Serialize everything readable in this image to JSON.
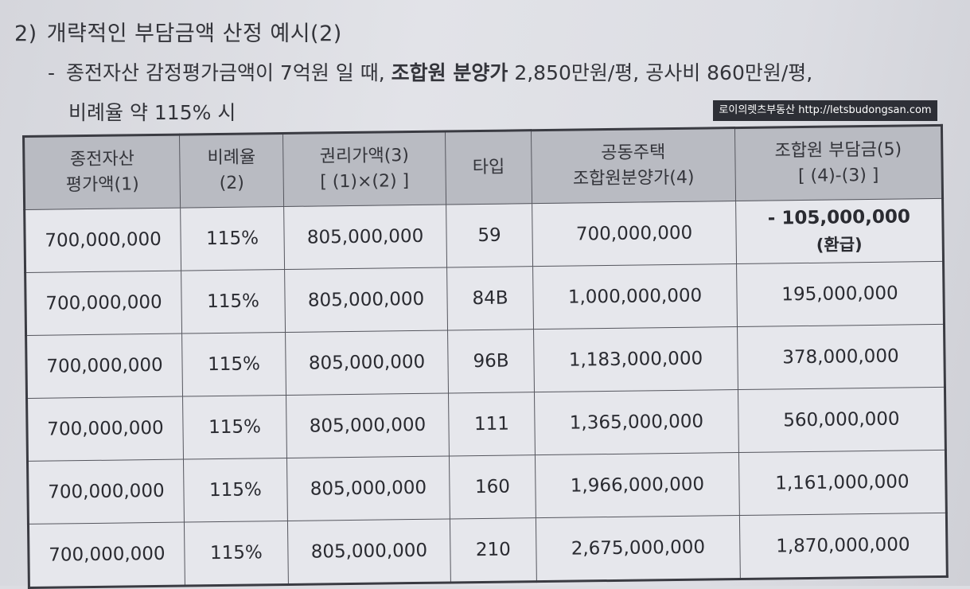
{
  "heading": {
    "number": "2)",
    "title": "개략적인 부담금액 산정 예시(2)"
  },
  "bullet": {
    "dash": "-",
    "text_normal": "종전자산 감정평가금액이 7억원 일 때,",
    "text_bold": "조합원 분양가",
    "text_after": "2,850만원/평, 공사비 860만원/평,",
    "line2": "비례율 약 115% 시"
  },
  "watermark": "로이의렛츠부동산 http://letsbudongsan.com",
  "table": {
    "headers": [
      {
        "line1": "종전자산",
        "line2": "평가액(1)"
      },
      {
        "line1": "비례율",
        "line2": "(2)"
      },
      {
        "line1": "권리가액(3)",
        "line2": "[ (1)×(2) ]"
      },
      {
        "line1": "타입",
        "line2": ""
      },
      {
        "line1": "공동주택",
        "line2": "조합원분양가(4)"
      },
      {
        "line1": "조합원 부담금(5)",
        "line2": "[ (4)-(3) ]"
      }
    ],
    "rows": [
      {
        "asset": "700,000,000",
        "ratio": "115%",
        "rights": "805,000,000",
        "type": "59",
        "price": "700,000,000",
        "burden": "- 105,000,000",
        "burden_note": "(환급)"
      },
      {
        "asset": "700,000,000",
        "ratio": "115%",
        "rights": "805,000,000",
        "type": "84B",
        "price": "1,000,000,000",
        "burden": "195,000,000",
        "burden_note": ""
      },
      {
        "asset": "700,000,000",
        "ratio": "115%",
        "rights": "805,000,000",
        "type": "96B",
        "price": "1,183,000,000",
        "burden": "378,000,000",
        "burden_note": ""
      },
      {
        "asset": "700,000,000",
        "ratio": "115%",
        "rights": "805,000,000",
        "type": "111",
        "price": "1,365,000,000",
        "burden": "560,000,000",
        "burden_note": ""
      },
      {
        "asset": "700,000,000",
        "ratio": "115%",
        "rights": "805,000,000",
        "type": "160",
        "price": "1,966,000,000",
        "burden": "1,161,000,000",
        "burden_note": ""
      },
      {
        "asset": "700,000,000",
        "ratio": "115%",
        "rights": "805,000,000",
        "type": "210",
        "price": "2,675,000,000",
        "burden": "1,870,000,000",
        "burden_note": ""
      }
    ]
  }
}
